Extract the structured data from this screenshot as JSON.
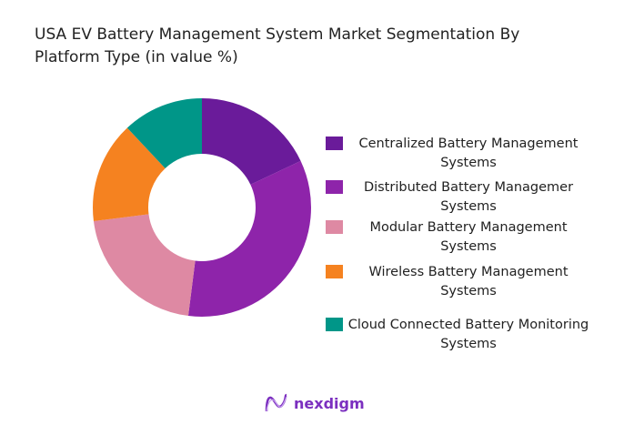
{
  "title": "USA EV Battery Management System Market Segmentation By Platform Type (in value %)",
  "logo_text": "nexdigm",
  "chart_data": {
    "type": "pie",
    "variant": "donut",
    "title": "USA EV Battery Management System Market Segmentation By Platform Type (in value %)",
    "categories": [
      "Centralized Battery Management Systems",
      "Distributed Battery Managemer Systems",
      "Modular Battery Management Systems",
      "Wireless Battery Management Systems",
      "Cloud Connected Battery Monitoring Systems"
    ],
    "values": [
      18,
      34,
      21,
      15,
      12
    ],
    "colors": [
      "#6a1b9a",
      "#8e24aa",
      "#de89a3",
      "#f58220",
      "#009688"
    ],
    "legend_position": "right"
  }
}
